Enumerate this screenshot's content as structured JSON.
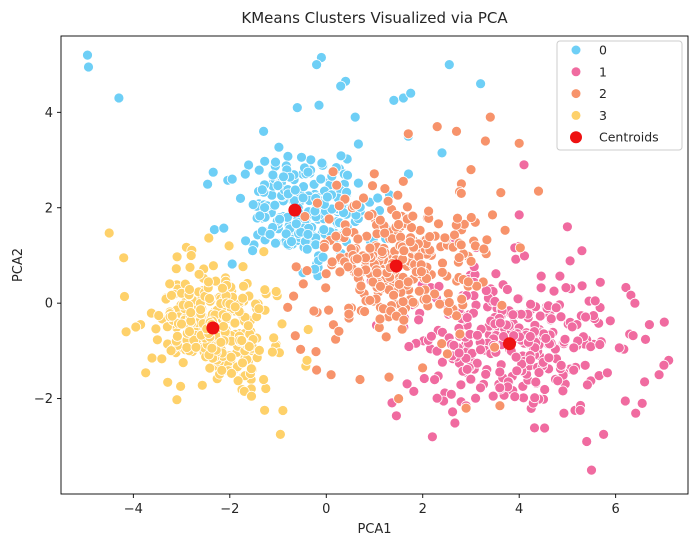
{
  "chart_data": {
    "type": "scatter",
    "title": "KMeans Clusters Visualized via PCA",
    "xlabel": "PCA1",
    "ylabel": "PCA2",
    "xlim": [
      -5.5,
      7.5
    ],
    "ylim": [
      -4.0,
      5.6
    ],
    "xticks": [
      -4,
      -2,
      0,
      2,
      4,
      6
    ],
    "yticks": [
      -2,
      0,
      2,
      4
    ],
    "grid": false,
    "legend_position": "top-right",
    "series": [
      {
        "name": "0",
        "color": "#6ecff6",
        "clusters": [
          {
            "center": [
              -0.5,
              2.0
            ],
            "sd": [
              0.75,
              0.55
            ],
            "n": 230
          }
        ],
        "points": [
          [
            -4.95,
            5.2
          ],
          [
            -4.93,
            4.95
          ],
          [
            -4.3,
            4.3
          ],
          [
            -0.1,
            5.15
          ],
          [
            -0.2,
            5.0
          ],
          [
            0.4,
            4.65
          ],
          [
            0.3,
            4.55
          ],
          [
            2.55,
            5.0
          ],
          [
            3.2,
            4.6
          ],
          [
            1.6,
            4.3
          ],
          [
            1.75,
            4.4
          ],
          [
            1.4,
            4.25
          ],
          [
            -0.6,
            4.1
          ],
          [
            -0.15,
            4.15
          ],
          [
            -1.3,
            3.6
          ],
          [
            0.6,
            3.9
          ],
          [
            2.4,
            3.15
          ],
          [
            1.7,
            3.5
          ],
          [
            -1.95,
            2.6
          ]
        ]
      },
      {
        "name": "1",
        "color": "#f06ba0",
        "clusters": [
          {
            "center": [
              3.8,
              -0.8
            ],
            "sd": [
              1.1,
              0.75
            ],
            "n": 330
          }
        ],
        "points": [
          [
            7.1,
            -1.2
          ],
          [
            6.9,
            -1.5
          ],
          [
            7.0,
            -1.3
          ],
          [
            6.7,
            -0.45
          ],
          [
            6.4,
            0.0
          ],
          [
            5.0,
            1.6
          ],
          [
            4.1,
            2.9
          ],
          [
            4.0,
            1.85
          ],
          [
            5.5,
            -3.5
          ],
          [
            5.75,
            -2.75
          ],
          [
            5.4,
            -2.9
          ],
          [
            2.2,
            -2.8
          ],
          [
            5.3,
            1.1
          ],
          [
            6.55,
            -2.1
          ],
          [
            6.2,
            -2.05
          ],
          [
            6.6,
            -1.65
          ]
        ]
      },
      {
        "name": "2",
        "color": "#f7936b",
        "clusters": [
          {
            "center": [
              1.4,
              0.8
            ],
            "sd": [
              0.9,
              0.75
            ],
            "n": 320
          }
        ],
        "points": [
          [
            3.4,
            3.9
          ],
          [
            3.3,
            3.4
          ],
          [
            4.0,
            3.35
          ],
          [
            2.3,
            3.7
          ],
          [
            1.7,
            3.55
          ],
          [
            2.7,
            3.6
          ],
          [
            4.4,
            2.35
          ],
          [
            3.0,
            2.8
          ],
          [
            2.8,
            2.3
          ],
          [
            0.1,
            -1.5
          ],
          [
            0.7,
            -1.6
          ],
          [
            1.5,
            -2.0
          ],
          [
            1.3,
            -1.55
          ],
          [
            -0.2,
            -1.4
          ],
          [
            2.9,
            -2.2
          ],
          [
            3.6,
            -2.15
          ]
        ]
      },
      {
        "name": "3",
        "color": "#fed16a",
        "clusters": [
          {
            "center": [
              -2.3,
              -0.5
            ],
            "sd": [
              0.6,
              0.6
            ],
            "n": 330
          }
        ],
        "points": [
          [
            -4.5,
            1.47
          ],
          [
            -4.2,
            0.95
          ],
          [
            -4.15,
            -0.6
          ],
          [
            -3.85,
            -0.45
          ],
          [
            -3.95,
            -0.5
          ],
          [
            -0.95,
            -2.75
          ],
          [
            -0.9,
            -2.25
          ],
          [
            -1.7,
            -1.85
          ],
          [
            -1.55,
            -1.95
          ],
          [
            -1.3,
            -1.6
          ],
          [
            -0.4,
            -1.2
          ],
          [
            -2.8,
            1.0
          ]
        ]
      }
    ],
    "centroids": {
      "name": "Centroids",
      "color": "#ee1111",
      "points": [
        [
          -0.65,
          1.95
        ],
        [
          3.8,
          -0.85
        ],
        [
          1.45,
          0.78
        ],
        [
          -2.35,
          -0.52
        ]
      ]
    }
  }
}
